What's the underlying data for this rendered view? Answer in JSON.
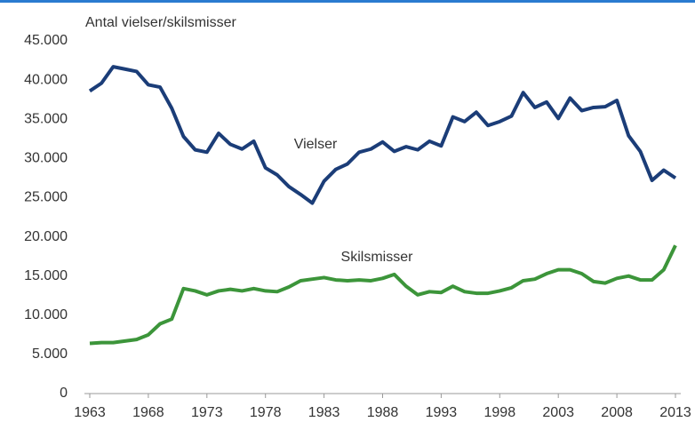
{
  "chart_data": {
    "type": "line",
    "title": "Antal vielser/skilsmisser",
    "x": [
      1963,
      1964,
      1965,
      1966,
      1967,
      1968,
      1969,
      1970,
      1971,
      1972,
      1973,
      1974,
      1975,
      1976,
      1977,
      1978,
      1979,
      1980,
      1981,
      1982,
      1983,
      1984,
      1985,
      1986,
      1987,
      1988,
      1989,
      1990,
      1991,
      1992,
      1993,
      1994,
      1995,
      1996,
      1997,
      1998,
      1999,
      2000,
      2001,
      2002,
      2003,
      2004,
      2005,
      2006,
      2007,
      2008,
      2009,
      2010,
      2011,
      2012,
      2013
    ],
    "series": [
      {
        "name": "Vielser",
        "color": "#1b3d78",
        "values": [
          38600,
          39600,
          41700,
          41400,
          41100,
          39400,
          39100,
          36400,
          32800,
          31100,
          30800,
          33200,
          31800,
          31200,
          32200,
          28800,
          27900,
          26400,
          25400,
          24300,
          27100,
          28600,
          29300,
          30800,
          31200,
          32100,
          30900,
          31500,
          31100,
          32200,
          31600,
          35300,
          34700,
          35900,
          34200,
          34700,
          35400,
          38400,
          36500,
          37200,
          35100,
          37700,
          36100,
          36500,
          36600,
          37400,
          32900,
          30900,
          27200,
          28500,
          27500
        ]
      },
      {
        "name": "Skilsmisser",
        "color": "#3c953a",
        "values": [
          6400,
          6500,
          6500,
          6700,
          6900,
          7500,
          8900,
          9500,
          13400,
          13100,
          12600,
          13100,
          13300,
          13100,
          13400,
          13100,
          13000,
          13600,
          14400,
          14600,
          14800,
          14500,
          14400,
          14500,
          14400,
          14700,
          15200,
          13700,
          12600,
          13000,
          12900,
          13700,
          13000,
          12800,
          12800,
          13100,
          13500,
          14400,
          14600,
          15300,
          15800,
          15800,
          15300,
          14300,
          14100,
          14700,
          15000,
          14500,
          14500,
          15800,
          18900
        ]
      }
    ],
    "xlim": [
      1963,
      2013
    ],
    "xticks": [
      1963,
      1968,
      1973,
      1978,
      1983,
      1988,
      1993,
      1998,
      2003,
      2008,
      2013
    ],
    "ylim": [
      0,
      45000
    ],
    "yticks": [
      0,
      {
        "value": 5000,
        "label": "5.000"
      },
      {
        "value": 10000,
        "label": "10.000"
      },
      {
        "value": 15000,
        "label": "15.000"
      },
      {
        "value": 20000,
        "label": "20.000"
      },
      {
        "value": 25000,
        "label": "25.000"
      },
      {
        "value": 30000,
        "label": "30.000"
      },
      {
        "value": 35000,
        "label": "35.000"
      },
      {
        "value": 40000,
        "label": "40.000"
      },
      {
        "value": 45000,
        "label": "45.000"
      }
    ],
    "grid": false
  }
}
